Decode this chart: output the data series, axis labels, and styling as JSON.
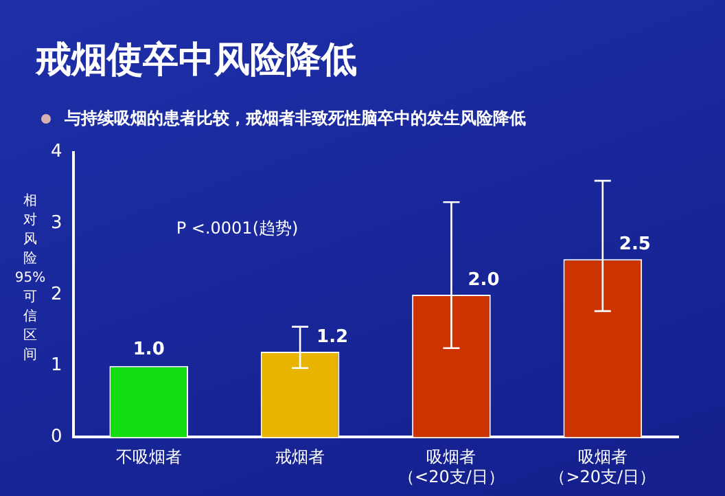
{
  "chart_data": {
    "type": "bar",
    "title": "戒烟使卒中风险降低",
    "subtitle": "与持续吸烟的患者比较，戒烟者非致死性脑卒中的发生风险降低",
    "ylabel": "相对风险 95% 可信区间",
    "annotations": [
      "P <.0001(趋势)"
    ],
    "categories": [
      "不吸烟者",
      "戒烟者",
      "吸烟者（<20支/日）",
      "吸烟者（>20支/日）"
    ],
    "values": [
      1.0,
      1.2,
      2.0,
      2.5
    ],
    "colors": [
      "#11dd11",
      "#e8b400",
      "#cc3300",
      "#cc3300"
    ],
    "errors": [
      null,
      [
        0.97,
        1.55
      ],
      [
        1.25,
        3.3
      ],
      [
        1.77,
        3.6
      ]
    ],
    "value_labels": [
      "1.0",
      "1.2",
      "2.0",
      "2.5"
    ],
    "ylim": [
      0,
      4
    ],
    "yticks": [
      0,
      1,
      2,
      3,
      4
    ],
    "grid": false,
    "legend": false
  }
}
